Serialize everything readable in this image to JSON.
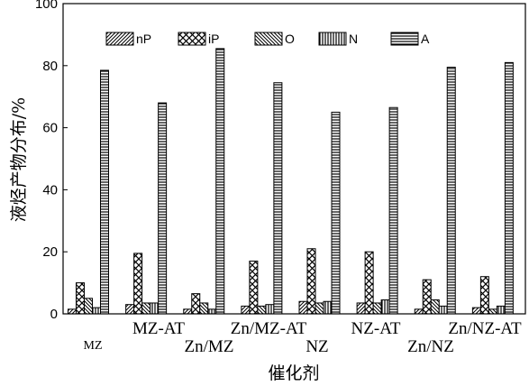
{
  "chart_data": {
    "type": "bar",
    "categories": [
      "MZ",
      "MZ-AT",
      "Zn/MZ",
      "Zn/MZ-AT",
      "NZ",
      "NZ-AT",
      "Zn/NZ",
      "Zn/NZ-AT"
    ],
    "series": [
      {
        "name": "nP",
        "values": [
          1.5,
          3.0,
          1.5,
          2.5,
          4.0,
          3.5,
          1.5,
          2.0
        ],
        "pattern": "diag-right"
      },
      {
        "name": "iP",
        "values": [
          10.0,
          19.5,
          6.5,
          17.0,
          21.0,
          20.0,
          11.0,
          12.0
        ],
        "pattern": "cross"
      },
      {
        "name": "O",
        "values": [
          5.0,
          3.5,
          3.5,
          2.5,
          3.5,
          3.5,
          4.5,
          1.5
        ],
        "pattern": "diag-left"
      },
      {
        "name": "N",
        "values": [
          2.0,
          3.5,
          1.5,
          3.0,
          4.0,
          4.5,
          2.5,
          2.5
        ],
        "pattern": "vertical"
      },
      {
        "name": "A",
        "values": [
          78.5,
          68.0,
          85.5,
          74.5,
          65.0,
          66.5,
          79.5,
          81.0
        ],
        "pattern": "horizontal"
      }
    ],
    "ylabel": "液烃产物分布/%",
    "xlabel": "催化剂",
    "ylim": [
      0,
      100
    ],
    "yticks": [
      0,
      20,
      40,
      60,
      80,
      100
    ],
    "legend_position": "top-inside",
    "grid": false
  }
}
